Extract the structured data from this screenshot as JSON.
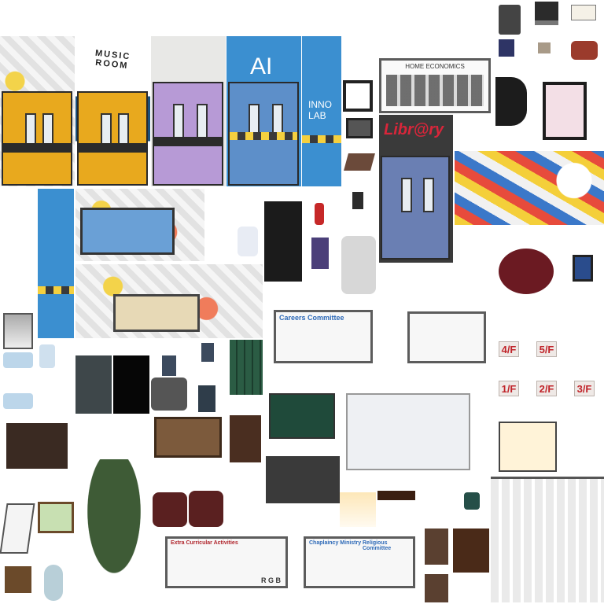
{
  "signs": {
    "music_room": "MUSIC ROOM",
    "ai": "AI",
    "inno_lab_line1": "INNO",
    "inno_lab_line2": "LAB",
    "home_economics": "HOME ECONOMICS",
    "library": "Libr@ry",
    "careers_committee": "Careers Committee",
    "extra_curricular": "Extra Curricular Activities",
    "chaplaincy": "Chaplaincy Ministry",
    "religious": "Religious Committee",
    "rgb": "R G B"
  },
  "floor_signs": [
    "4/F",
    "5/F",
    "1/F",
    "2/F",
    "3/F"
  ],
  "colors": {
    "door_yellow": "#e8a91e",
    "door_purple": "#b79ad6",
    "door_blue": "#5d8fc9",
    "wall_blue": "#3b8fd0",
    "floor_sign_red": "#c0242a",
    "board_green": "#1f4a3a"
  }
}
